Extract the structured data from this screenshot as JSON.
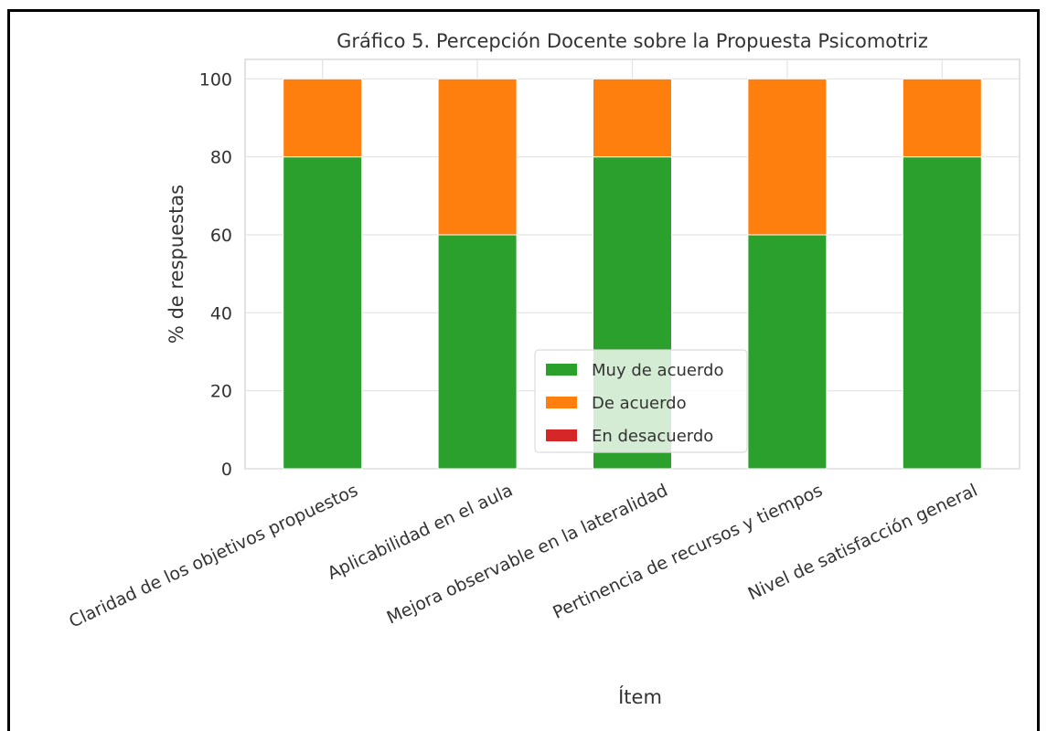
{
  "chart_data": {
    "type": "bar",
    "stacked": true,
    "title": "Gráfico 5. Percepción Docente sobre la Propuesta Psicomotriz",
    "xlabel": "Ítem",
    "ylabel": "% de respuestas",
    "ylim": [
      0,
      105
    ],
    "yticks": [
      0,
      20,
      40,
      60,
      80,
      100
    ],
    "grid": true,
    "legend_position": "lower-center",
    "categories": [
      "Claridad de los objetivos propuestos",
      "Aplicabilidad en el aula",
      "Mejora observable en la lateralidad",
      "Pertinencia de recursos y tiempos",
      "Nivel de satisfacción general"
    ],
    "series": [
      {
        "name": "Muy de acuerdo",
        "color": "#2ca02c",
        "values": [
          80,
          60,
          80,
          60,
          80
        ]
      },
      {
        "name": "De acuerdo",
        "color": "#ff7f0e",
        "values": [
          20,
          40,
          20,
          40,
          20
        ]
      },
      {
        "name": "En desacuerdo",
        "color": "#d62728",
        "values": [
          0,
          0,
          0,
          0,
          0
        ]
      }
    ]
  }
}
